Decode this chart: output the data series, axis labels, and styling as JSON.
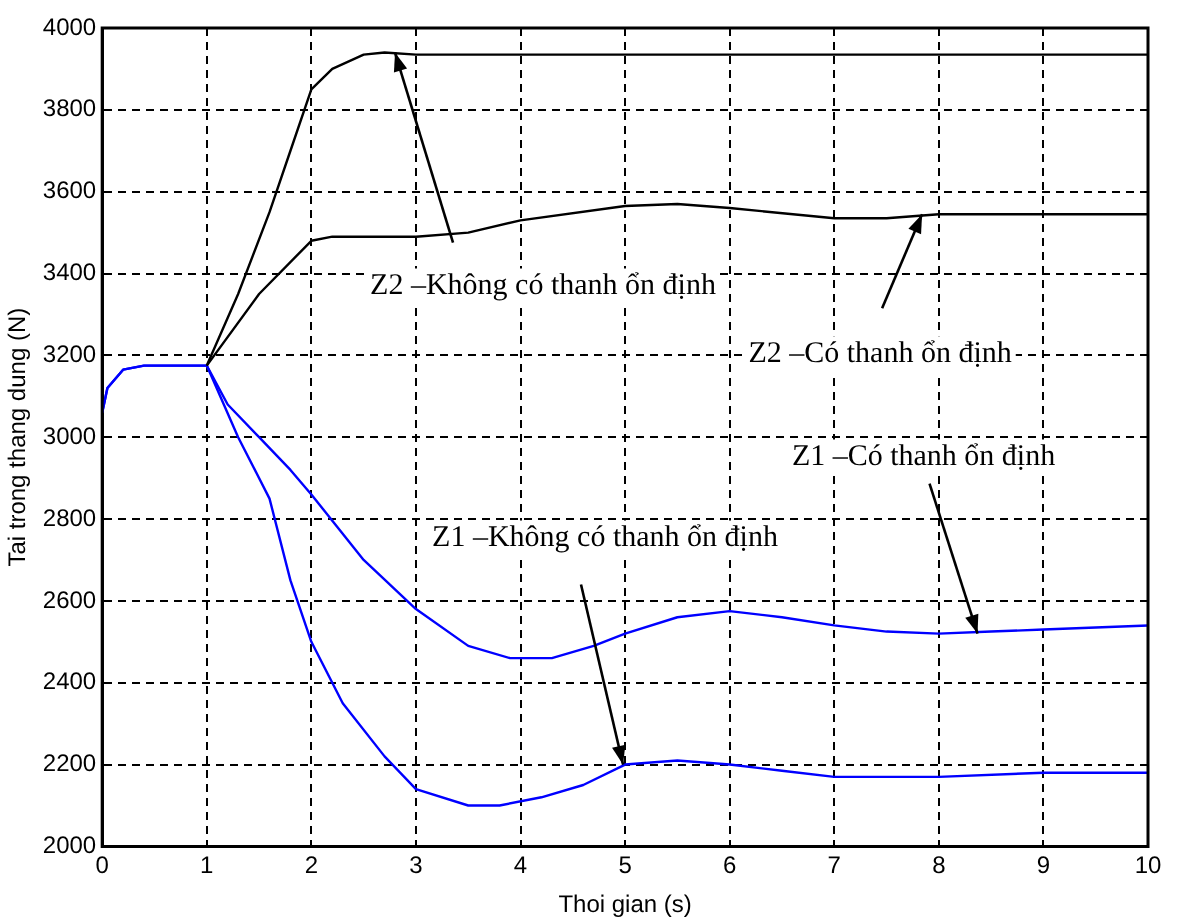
{
  "chart_data": {
    "type": "line",
    "xlabel": "Thoi gian (s)",
    "ylabel": "Tai trong thang dung (N)",
    "xlim": [
      0,
      10
    ],
    "xticks": [
      0,
      1,
      2,
      3,
      4,
      5,
      6,
      7,
      8,
      9,
      10
    ],
    "ylim": [
      2000,
      4000
    ],
    "yticks": [
      2000,
      2200,
      2400,
      2600,
      2800,
      3000,
      3200,
      3400,
      3600,
      3800,
      4000
    ],
    "grid": true,
    "legend": false,
    "marker": "none",
    "series": [
      {
        "color": "#000000",
        "x": [
          1,
          1.3,
          1.6,
          1.8,
          2,
          2.2,
          2.5,
          2.7,
          3,
          5,
          7,
          10
        ],
        "values": [
          3175,
          3350,
          3550,
          3700,
          3850,
          3900,
          3935,
          3940,
          3935,
          3935,
          3935,
          3935
        ]
      },
      {
        "color": "#000000",
        "x": [
          1,
          1.5,
          2,
          2.2,
          3,
          3.5,
          4,
          5,
          5.5,
          6,
          7,
          7.5,
          8,
          10
        ],
        "values": [
          3175,
          3350,
          3480,
          3490,
          3490,
          3500,
          3530,
          3565,
          3570,
          3560,
          3535,
          3535,
          3545,
          3545
        ]
      },
      {
        "color": "#0000ff",
        "x": [
          0,
          0.05,
          0.2,
          0.4,
          1,
          1.2,
          1.5,
          1.8,
          2,
          2.5,
          3,
          3.5,
          3.9,
          4.3,
          4.7,
          5,
          5.5,
          6,
          6.5,
          7,
          7.5,
          8,
          8.5,
          9,
          10
        ],
        "values": [
          3060,
          3120,
          3165,
          3175,
          3175,
          3080,
          3000,
          2920,
          2860,
          2700,
          2580,
          2490,
          2460,
          2460,
          2490,
          2520,
          2560,
          2575,
          2560,
          2540,
          2525,
          2520,
          2525,
          2530,
          2540
        ]
      },
      {
        "color": "#0000ff",
        "x": [
          0,
          0.05,
          0.2,
          0.4,
          1,
          1.3,
          1.6,
          1.8,
          2,
          2.3,
          2.7,
          3,
          3.5,
          3.8,
          4.2,
          4.6,
          5,
          5.5,
          6,
          6.5,
          7,
          8,
          9,
          10
        ],
        "values": [
          3060,
          3120,
          3165,
          3175,
          3175,
          3000,
          2850,
          2650,
          2500,
          2350,
          2220,
          2140,
          2100,
          2100,
          2120,
          2150,
          2200,
          2210,
          2200,
          2185,
          2170,
          2170,
          2180,
          2180
        ]
      }
    ],
    "annotations": [
      {
        "text": "Z2 –Không có thanh ổn định",
        "x": 2.8,
        "y": 3940
      },
      {
        "text": "Z2 –Có thanh ổn định",
        "x": 7.84,
        "y": 3545
      },
      {
        "text": "Z1 –Có thanh ổn định",
        "x": 8.37,
        "y": 2520
      },
      {
        "text": "Z1 –Không có thanh ổn định",
        "x": 4.98,
        "y": 2200
      }
    ]
  }
}
